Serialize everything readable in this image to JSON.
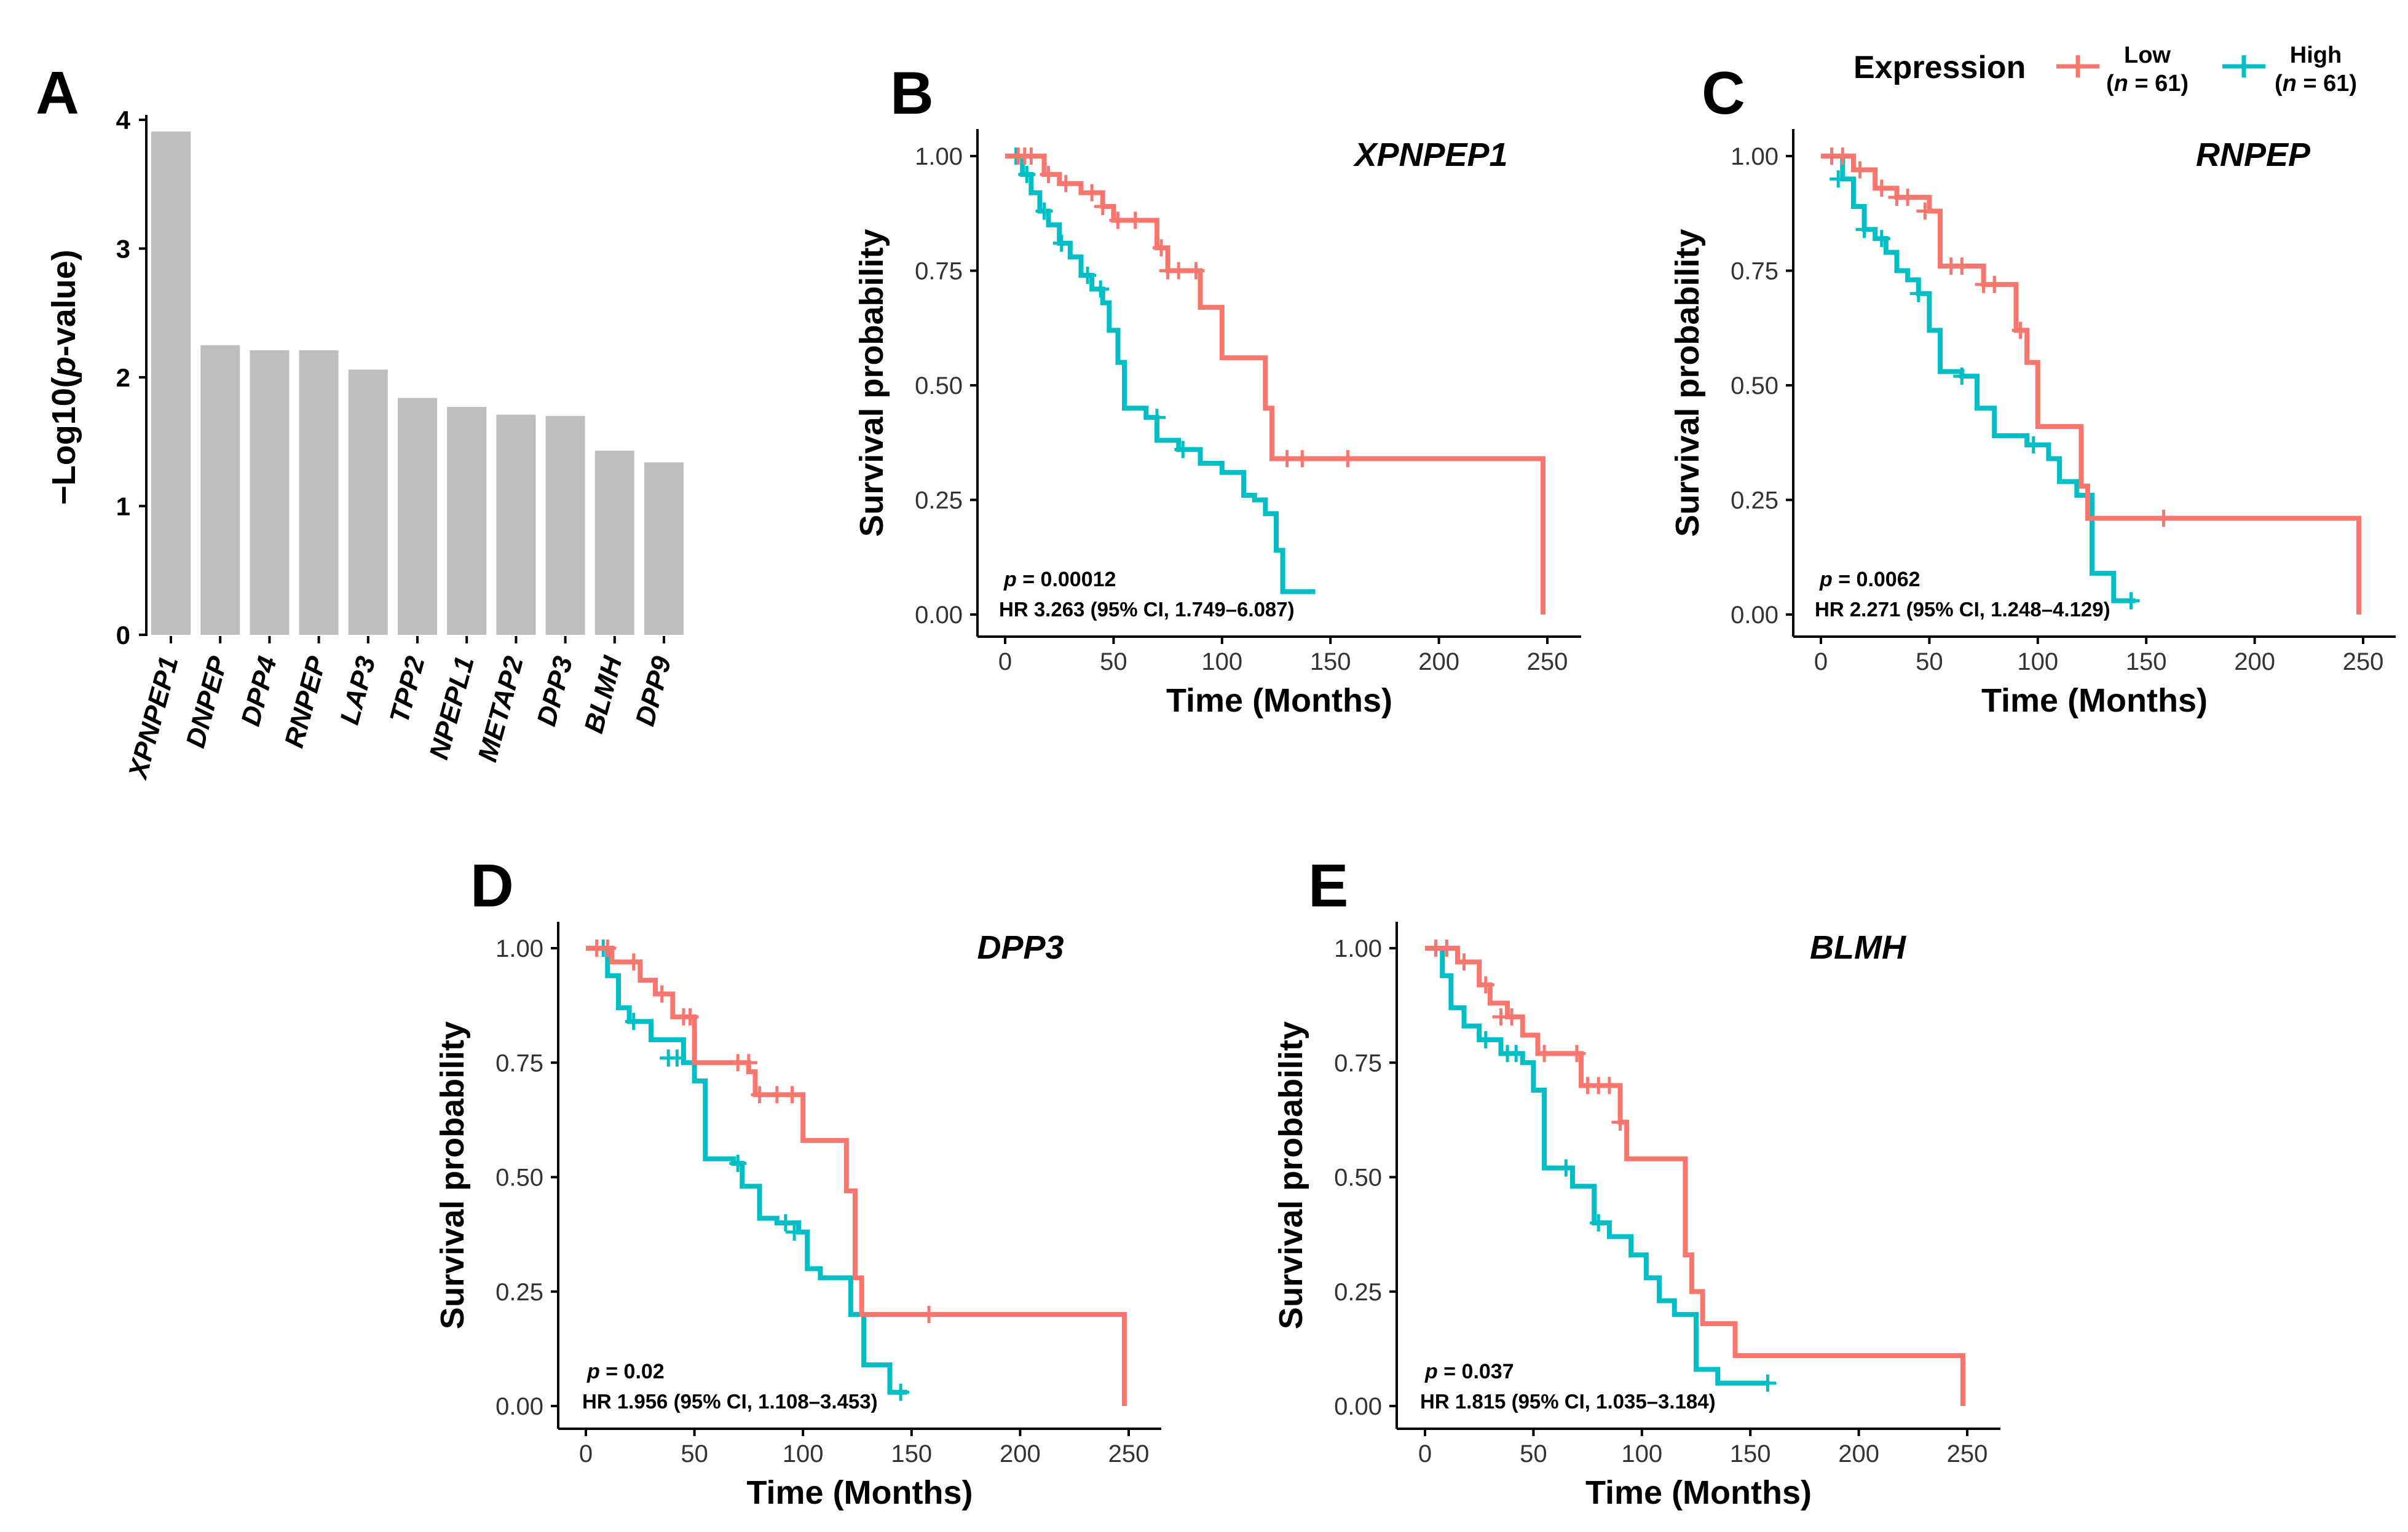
{
  "legend": {
    "title": "Expression",
    "entries": [
      {
        "label": "Low",
        "n_prefix": "(",
        "n_var": "n",
        "n_rest": " = 61)",
        "color": "#F8766D"
      },
      {
        "label": "High",
        "n_prefix": "(",
        "n_var": "n",
        "n_rest": " = 61)",
        "color": "#00BFC4"
      }
    ]
  },
  "chart_data": [
    {
      "panel": "A",
      "type": "bar",
      "title": "",
      "ylabel_parts": [
        "−Log10(",
        "p",
        "-value)"
      ],
      "xlabel": "",
      "ylim": [
        0,
        4
      ],
      "yticks": [
        "0",
        "1",
        "2",
        "3",
        "4"
      ],
      "bar_color": "#BEBEBE",
      "categories": [
        "XPNPEP1",
        "DNPEP",
        "DPP4",
        "RNPEP",
        "LAP3",
        "TPP2",
        "NPEPL1",
        "METAP2",
        "DPP3",
        "BLMH",
        "DPP9"
      ],
      "values": [
        3.91,
        2.25,
        2.21,
        2.21,
        2.06,
        1.84,
        1.77,
        1.71,
        1.7,
        1.43,
        1.34
      ]
    },
    {
      "panel": "B",
      "type": "line",
      "gene": "XPNPEP1",
      "xlabel": "Time (Months)",
      "ylabel": "Survival probability",
      "xlim": [
        0,
        250
      ],
      "ylim": [
        0,
        1
      ],
      "xticks": [
        "0",
        "50",
        "100",
        "150",
        "200",
        "250"
      ],
      "yticks": [
        "0.00",
        "0.25",
        "0.50",
        "0.75",
        "1.00"
      ],
      "p_var": "p",
      "p_text": " = 0.00012",
      "hr_text": "HR 3.263 (95% CI, 1.749–6.087)",
      "series": [
        {
          "name": "Low",
          "color": "#F8766D",
          "x": [
            0,
            18,
            25,
            35,
            45,
            50,
            70,
            75,
            90,
            100,
            120,
            123,
            248,
            248
          ],
          "y": [
            1.0,
            0.96,
            0.94,
            0.92,
            0.89,
            0.86,
            0.8,
            0.75,
            0.67,
            0.56,
            0.45,
            0.34,
            0.34,
            0.0
          ],
          "censor_x": [
            6,
            9,
            12,
            20,
            28,
            40,
            45,
            52,
            60,
            72,
            75,
            80,
            88,
            130,
            137,
            158
          ],
          "censor_y": [
            1.0,
            1.0,
            1.0,
            0.96,
            0.94,
            0.92,
            0.89,
            0.86,
            0.86,
            0.8,
            0.75,
            0.75,
            0.75,
            0.34,
            0.34,
            0.34
          ]
        },
        {
          "name": "High",
          "color": "#00BFC4",
          "x": [
            0,
            8,
            12,
            16,
            20,
            25,
            30,
            35,
            40,
            45,
            48,
            52,
            55,
            65,
            70,
            80,
            90,
            100,
            110,
            115,
            120,
            125,
            128,
            143
          ],
          "y": [
            1.0,
            0.96,
            0.92,
            0.88,
            0.85,
            0.81,
            0.78,
            0.74,
            0.71,
            0.68,
            0.62,
            0.55,
            0.45,
            0.43,
            0.38,
            0.36,
            0.33,
            0.31,
            0.26,
            0.25,
            0.22,
            0.14,
            0.05,
            0.05
          ],
          "censor_x": [
            5,
            10,
            18,
            26,
            38,
            44,
            70,
            82
          ],
          "censor_y": [
            1.0,
            0.96,
            0.88,
            0.81,
            0.74,
            0.71,
            0.43,
            0.36
          ]
        }
      ]
    },
    {
      "panel": "C",
      "type": "line",
      "gene": "RNPEP",
      "xlabel": "Time (Months)",
      "ylabel": "Survival probability",
      "xlim": [
        0,
        250
      ],
      "ylim": [
        0,
        1
      ],
      "xticks": [
        "0",
        "50",
        "100",
        "150",
        "200",
        "250"
      ],
      "yticks": [
        "0.00",
        "0.25",
        "0.50",
        "0.75",
        "1.00"
      ],
      "p_var": "p",
      "p_text": " = 0.0062",
      "hr_text": "HR 2.271 (95% CI, 1.248–4.129)",
      "series": [
        {
          "name": "Low",
          "color": "#F8766D",
          "x": [
            0,
            15,
            25,
            35,
            50,
            55,
            75,
            90,
            95,
            100,
            120,
            123,
            248,
            248
          ],
          "y": [
            1.0,
            0.97,
            0.93,
            0.91,
            0.88,
            0.76,
            0.72,
            0.62,
            0.55,
            0.41,
            0.28,
            0.21,
            0.21,
            0.0
          ],
          "censor_x": [
            5,
            10,
            18,
            28,
            35,
            40,
            48,
            60,
            65,
            75,
            80,
            92,
            158
          ],
          "censor_y": [
            1.0,
            1.0,
            0.97,
            0.93,
            0.91,
            0.91,
            0.88,
            0.76,
            0.76,
            0.72,
            0.72,
            0.62,
            0.21
          ]
        },
        {
          "name": "High",
          "color": "#00BFC4",
          "x": [
            0,
            10,
            15,
            20,
            25,
            30,
            35,
            40,
            45,
            50,
            55,
            65,
            72,
            80,
            95,
            105,
            110,
            118,
            125,
            135,
            145
          ],
          "y": [
            1.0,
            0.95,
            0.89,
            0.84,
            0.82,
            0.79,
            0.75,
            0.73,
            0.7,
            0.62,
            0.53,
            0.52,
            0.45,
            0.39,
            0.37,
            0.34,
            0.29,
            0.26,
            0.09,
            0.03,
            0.03
          ],
          "censor_x": [
            5,
            8,
            20,
            28,
            45,
            65,
            98,
            143
          ],
          "censor_y": [
            1.0,
            0.95,
            0.84,
            0.82,
            0.7,
            0.52,
            0.37,
            0.03
          ]
        }
      ]
    },
    {
      "panel": "D",
      "type": "line",
      "gene": "DPP3",
      "xlabel": "Time (Months)",
      "ylabel": "Survival probability",
      "xlim": [
        0,
        250
      ],
      "ylim": [
        0,
        1
      ],
      "xticks": [
        "0",
        "50",
        "100",
        "150",
        "200",
        "250"
      ],
      "yticks": [
        "0.00",
        "0.25",
        "0.50",
        "0.75",
        "1.00"
      ],
      "p_var": "p",
      "p_text": " = 0.02",
      "hr_text": "HR 1.956 (95% CI, 1.108–3.453)",
      "series": [
        {
          "name": "Low",
          "color": "#F8766D",
          "x": [
            0,
            12,
            25,
            32,
            40,
            50,
            75,
            78,
            100,
            120,
            124,
            127,
            248,
            248
          ],
          "y": [
            1.0,
            0.97,
            0.93,
            0.9,
            0.85,
            0.75,
            0.73,
            0.68,
            0.58,
            0.47,
            0.28,
            0.2,
            0.2,
            0.0
          ],
          "censor_x": [
            5,
            10,
            22,
            35,
            45,
            48,
            70,
            75,
            80,
            88,
            95,
            158
          ],
          "censor_y": [
            1.0,
            1.0,
            0.97,
            0.9,
            0.85,
            0.85,
            0.75,
            0.75,
            0.68,
            0.68,
            0.68,
            0.2
          ]
        },
        {
          "name": "High",
          "color": "#00BFC4",
          "x": [
            0,
            10,
            15,
            20,
            30,
            45,
            50,
            55,
            68,
            72,
            80,
            88,
            98,
            102,
            108,
            122,
            128,
            140,
            148
          ],
          "y": [
            1.0,
            0.94,
            0.87,
            0.84,
            0.8,
            0.75,
            0.71,
            0.54,
            0.53,
            0.48,
            0.41,
            0.4,
            0.38,
            0.3,
            0.28,
            0.2,
            0.09,
            0.03,
            0.03
          ],
          "censor_x": [
            8,
            22,
            38,
            42,
            70,
            92,
            96,
            145
          ],
          "censor_y": [
            1.0,
            0.84,
            0.76,
            0.76,
            0.53,
            0.4,
            0.38,
            0.03
          ]
        }
      ]
    },
    {
      "panel": "E",
      "type": "line",
      "gene": "BLMH",
      "xlabel": "Time (Months)",
      "ylabel": "Survival probability",
      "xlim": [
        0,
        250
      ],
      "ylim": [
        0,
        1
      ],
      "xticks": [
        "0",
        "50",
        "100",
        "150",
        "200",
        "250"
      ],
      "yticks": [
        "0.00",
        "0.25",
        "0.50",
        "0.75",
        "1.00"
      ],
      "p_var": "p",
      "p_text": " = 0.037",
      "hr_text": "HR 1.815 (95% CI, 1.035–3.184)",
      "series": [
        {
          "name": "Low",
          "color": "#F8766D",
          "x": [
            0,
            15,
            25,
            30,
            38,
            45,
            52,
            72,
            90,
            93,
            120,
            123,
            128,
            143,
            248,
            248
          ],
          "y": [
            1.0,
            0.97,
            0.92,
            0.88,
            0.85,
            0.81,
            0.77,
            0.7,
            0.62,
            0.54,
            0.33,
            0.25,
            0.18,
            0.11,
            0.11,
            0.0
          ],
          "censor_x": [
            5,
            10,
            18,
            28,
            35,
            40,
            55,
            70,
            75,
            80,
            85,
            90
          ],
          "censor_y": [
            1.0,
            1.0,
            0.97,
            0.92,
            0.85,
            0.85,
            0.77,
            0.77,
            0.7,
            0.7,
            0.7,
            0.62
          ]
        },
        {
          "name": "High",
          "color": "#00BFC4",
          "x": [
            0,
            8,
            12,
            18,
            25,
            35,
            45,
            50,
            55,
            68,
            78,
            85,
            95,
            102,
            108,
            115,
            125,
            135,
            158
          ],
          "y": [
            1.0,
            0.94,
            0.87,
            0.83,
            0.8,
            0.77,
            0.75,
            0.69,
            0.52,
            0.48,
            0.4,
            0.37,
            0.33,
            0.28,
            0.23,
            0.2,
            0.08,
            0.05,
            0.05
          ],
          "censor_x": [
            5,
            10,
            28,
            38,
            42,
            65,
            80,
            158
          ],
          "censor_y": [
            1.0,
            1.0,
            0.8,
            0.77,
            0.77,
            0.52,
            0.4,
            0.05
          ]
        }
      ]
    }
  ]
}
